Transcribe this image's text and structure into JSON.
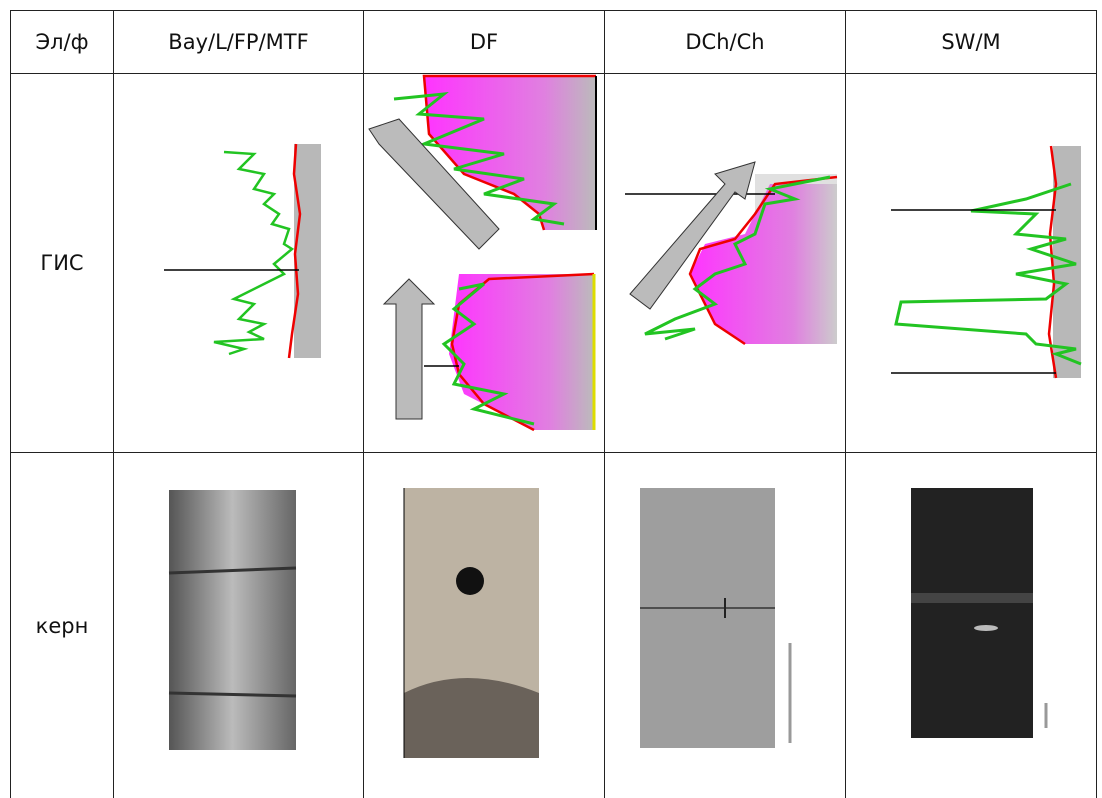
{
  "table": {
    "header": [
      "Эл/ф",
      "Bay/L/FP/MTF",
      "DF",
      "DCh/Ch",
      "SW/M"
    ],
    "rows": [
      {
        "label": "ГИС"
      },
      {
        "label": "керн"
      }
    ]
  }
}
